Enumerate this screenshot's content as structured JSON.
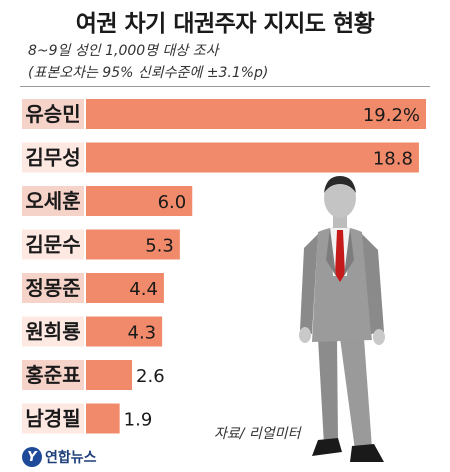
{
  "header": {
    "title": "여권 차기 대권주자 지지도 현황",
    "survey_note": "8~9일 성인 1,000명 대상 조사",
    "margin_note": "(표본오차는 95% 신뢰수준에 ±3.1%p)"
  },
  "footer": {
    "source": "자료/ 리얼미터",
    "logo_text": "연합뉴스"
  },
  "colors": {
    "bar": "#f08a6a",
    "label_bg": "#f6d3c9",
    "label_bg_light": "#fde8e2"
  },
  "chart_data": {
    "type": "bar",
    "orientation": "horizontal",
    "title": "여권 차기 대권주자 지지도 현황",
    "categories": [
      "유승민",
      "김무성",
      "오세훈",
      "김문수",
      "정몽준",
      "원희룡",
      "홍준표",
      "남경필"
    ],
    "values": [
      19.2,
      18.8,
      6.0,
      5.3,
      4.4,
      4.3,
      2.6,
      1.9
    ],
    "value_labels": [
      "19.2%",
      "18.8",
      "6.0",
      "5.3",
      "4.4",
      "4.3",
      "2.6",
      "1.9"
    ],
    "xlabel": "",
    "ylabel": "",
    "grid": false,
    "legend": "none"
  },
  "illustration": {
    "name": "businessman-silhouette-icon"
  }
}
